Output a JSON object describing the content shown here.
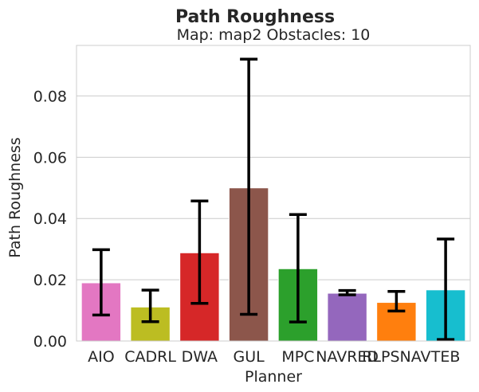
{
  "chart_data": {
    "type": "bar",
    "title": "Path Roughness",
    "subtitle": "Map: map2 Obstacles: 10",
    "xlabel": "Planner",
    "ylabel": "Path Roughness",
    "ylim": [
      0,
      0.0965
    ],
    "yticks": [
      "0.00",
      "0.02",
      "0.04",
      "0.06",
      "0.08"
    ],
    "ytick_values": [
      0,
      0.02,
      0.04,
      0.06,
      0.08
    ],
    "grid": "horizontal",
    "categories": [
      "AIO",
      "CADRL",
      "DWA",
      "GUL",
      "MPC",
      "NAVRED",
      "RLPSNAV",
      "TEB"
    ],
    "values": [
      0.019,
      0.0111,
      0.0288,
      0.05,
      0.0236,
      0.0156,
      0.0126,
      0.0167
    ],
    "error_low": [
      0.0085,
      0.0063,
      0.0123,
      0.0087,
      0.0062,
      0.0151,
      0.0098,
      0.0005
    ],
    "error_high": [
      0.0298,
      0.0166,
      0.0457,
      0.092,
      0.0413,
      0.0165,
      0.0162,
      0.0333
    ],
    "colors": [
      "#e377c2",
      "#bcbd22",
      "#d62728",
      "#8c564b",
      "#2ca02c",
      "#9467bd",
      "#ff7f0e",
      "#17becf"
    ]
  }
}
